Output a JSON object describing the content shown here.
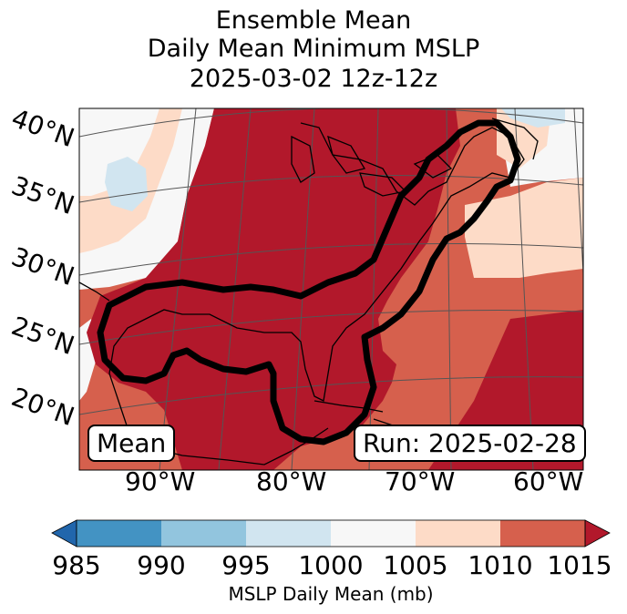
{
  "title": {
    "line1": "Ensemble Mean",
    "line2": "Daily Mean Minimum MSLP",
    "line3": "2025-03-02 12z-12z"
  },
  "map": {
    "lat_labels": [
      "40°N",
      "35°N",
      "30°N",
      "25°N",
      "20°N"
    ],
    "lon_labels": [
      "90°W",
      "80°W",
      "70°W",
      "60°W"
    ],
    "mean_label": "Mean",
    "run_label": "Run: 2025-02-28",
    "colors": {
      "c985": "#4393c3",
      "c990": "#92c5de",
      "c995": "#d1e5f0",
      "c1000": "#f7f7f7",
      "c1005": "#fddbc7",
      "c1010": "#d6604d",
      "c1015": "#b2182b",
      "under": "#2166ac",
      "over": "#b2182b"
    }
  },
  "colorbar": {
    "ticks": [
      "985",
      "990",
      "995",
      "1000",
      "1005",
      "1010",
      "1015"
    ],
    "label": "MSLP Daily Mean (mb)"
  }
}
